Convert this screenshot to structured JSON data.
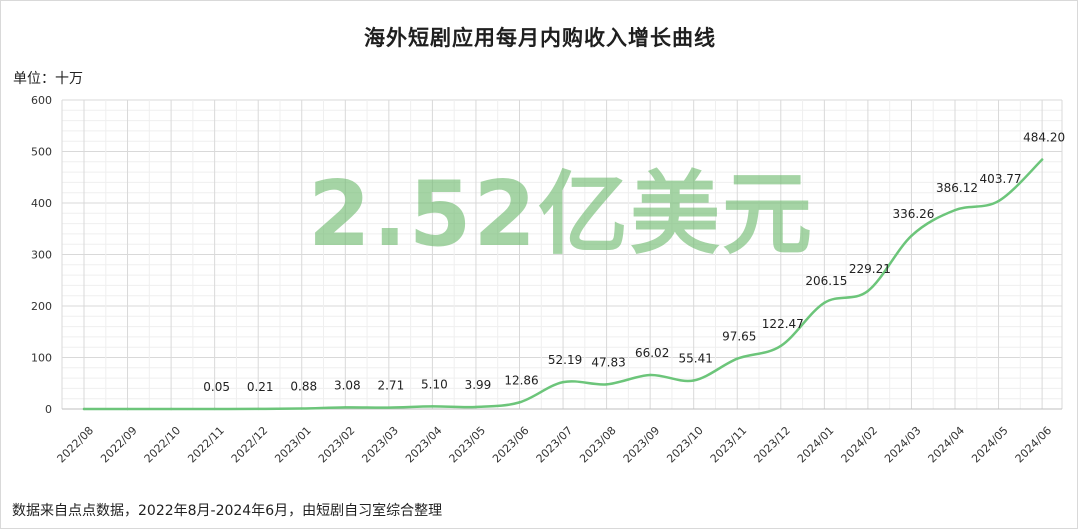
{
  "title": "海外短剧应用每月内购收入增长曲线",
  "unit_label": "单位：十万",
  "watermark": "2.52亿美元",
  "footer": "数据来自点点数据，2022年8月-2024年6月，由短剧自习室综合整理",
  "colors": {
    "line": "#6cc57a",
    "grid": "#d9d9d9",
    "watermark": "#6eb96e"
  },
  "chart_data": {
    "type": "line",
    "title": "海外短剧应用每月内购收入增长曲线",
    "ylabel": "单位：十万",
    "xlabel": "",
    "ylim": [
      0,
      600
    ],
    "yticks": [
      0,
      100,
      200,
      300,
      400,
      500,
      600
    ],
    "grid": true,
    "categories": [
      "2022/08",
      "2022/09",
      "2022/10",
      "2022/11",
      "2022/12",
      "2023/01",
      "2023/02",
      "2023/03",
      "2023/04",
      "2023/05",
      "2023/06",
      "2023/07",
      "2023/08",
      "2023/09",
      "2023/10",
      "2023/11",
      "2023/12",
      "2024/01",
      "2024/02",
      "2024/03",
      "2024/04",
      "2024/05",
      "2024/06"
    ],
    "values": [
      0,
      0,
      0,
      0.05,
      0.21,
      0.88,
      3.08,
      2.71,
      5.1,
      3.99,
      12.86,
      52.19,
      47.83,
      66.02,
      55.41,
      97.65,
      122.47,
      206.15,
      229.21,
      336.26,
      386.12,
      403.77,
      484.2
    ],
    "data_labels": [
      "",
      "",
      "",
      "0.05",
      "0.21",
      "0.88",
      "3.08",
      "2.71",
      "5.10",
      "3.99",
      "12.86",
      "52.19",
      "47.83",
      "66.02",
      "55.41",
      "97.65",
      "122.47",
      "206.15",
      "229.21",
      "336.26",
      "386.12",
      "403.77",
      "484.20"
    ]
  }
}
